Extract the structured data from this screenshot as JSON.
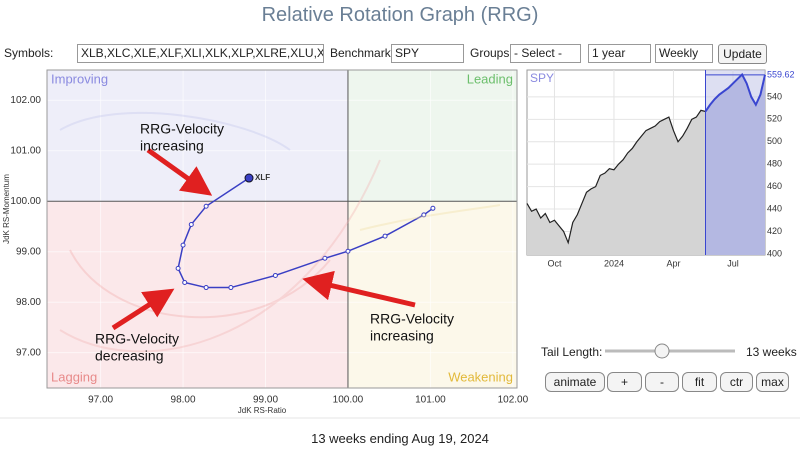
{
  "header": {
    "title": "Relative Rotation Graph (RRG)"
  },
  "controls": {
    "symbols_label": "Symbols:",
    "symbols": "XLB,XLC,XLE,XLF,XLI,XLK,XLP,XLRE,XLU,XLV,XL",
    "benchmark_label": "Benchmark:",
    "benchmark": "SPY",
    "groups_label": "Groups:",
    "groups": "- Select -",
    "period": "1 year",
    "frequency": "Weekly",
    "update": "Update"
  },
  "rrg": {
    "type": "line",
    "x_label": "JdK RS-Ratio",
    "y_label": "JdK RS-Momentum",
    "quadrants": [
      "Improving",
      "Leading",
      "Lagging",
      "Weakening"
    ],
    "xlim": [
      96.35,
      102.05
    ],
    "ylim": [
      96.3,
      102.6
    ],
    "xticks": [
      {
        "value": 97,
        "label": "97.00"
      },
      {
        "value": 98,
        "label": "98.00"
      },
      {
        "value": 99,
        "label": "99.00"
      },
      {
        "value": 100,
        "label": "100.00"
      },
      {
        "value": 101,
        "label": "101.00"
      },
      {
        "value": 102,
        "label": "102.00"
      }
    ],
    "yticks": [
      {
        "value": 97,
        "label": "97.00"
      },
      {
        "value": 98,
        "label": "98.00"
      },
      {
        "value": 99,
        "label": "99.00"
      },
      {
        "value": 100,
        "label": "100.00"
      },
      {
        "value": 101,
        "label": "101.00"
      },
      {
        "value": 102,
        "label": "102.00"
      }
    ],
    "series": [
      {
        "name": "XLF",
        "color": "#3a3fc4",
        "x": [
          101.03,
          100.92,
          100.45,
          100.0,
          99.72,
          99.12,
          98.58,
          98.28,
          98.02,
          97.94,
          98.0,
          98.1,
          98.28,
          98.8
        ],
        "y": [
          99.86,
          99.73,
          99.31,
          99.01,
          98.87,
          98.53,
          98.29,
          98.29,
          98.39,
          98.67,
          99.13,
          99.54,
          99.9,
          100.46
        ]
      }
    ],
    "annotations": [
      {
        "lines": [
          "RRG-Velocity",
          "increasing"
        ]
      },
      {
        "lines": [
          "RRG-Velocity",
          "decreasing"
        ]
      },
      {
        "lines": [
          "RRG-Velocity",
          "increasing"
        ]
      }
    ]
  },
  "benchmark_chart": {
    "type": "area",
    "name": "SPY",
    "values": [
      445,
      438,
      440,
      432,
      436,
      428,
      430,
      425,
      420,
      410,
      428,
      435,
      445,
      455,
      458,
      460,
      470,
      472,
      476,
      475,
      480,
      484,
      490,
      494,
      500,
      505,
      510,
      512,
      514,
      518,
      520,
      522,
      510,
      500,
      505,
      512,
      520,
      522,
      528,
      527,
      533,
      538,
      542,
      545,
      548,
      552,
      556,
      560,
      552,
      540,
      533,
      542,
      559.62
    ],
    "ylim": [
      399,
      564
    ],
    "yticks": [
      400,
      420,
      440,
      460,
      480,
      500,
      520,
      540
    ],
    "xticks": [
      {
        "value": 6,
        "label": "Oct"
      },
      {
        "value": 19,
        "label": "2024"
      },
      {
        "value": 32,
        "label": "Apr"
      },
      {
        "value": 45,
        "label": "Jul"
      }
    ]
  },
  "tail": {
    "label": "Tail Length:",
    "value": "13 weeks"
  },
  "buttons": [
    "animate",
    "+",
    "-",
    "fit",
    "ctr",
    "max"
  ],
  "footer": "13 weeks ending Aug 19, 2024"
}
